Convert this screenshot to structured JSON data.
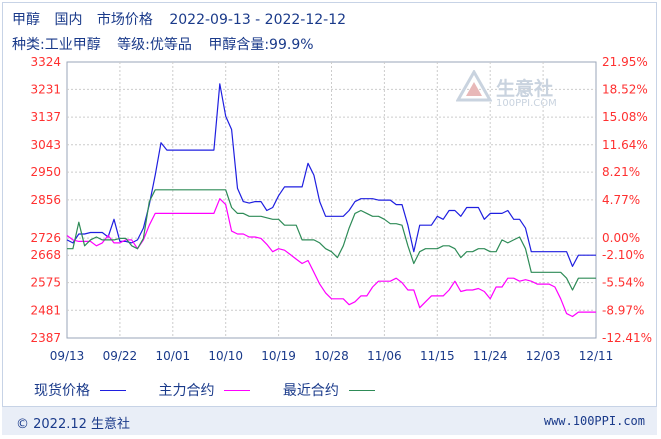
{
  "header": {
    "product": "甲醇",
    "market": "国内",
    "price_type": "市场价格",
    "date_range": "2022-09-13 - 2022-12-12",
    "category": "种类:工业甲醇",
    "grade": "等级:优等品",
    "content": "甲醇含量:99.9%"
  },
  "watermark": {
    "name": "生意社",
    "url": "100PPI.COM"
  },
  "legend": [
    {
      "label": "现货价格",
      "color": "#1f1fe0"
    },
    {
      "label": "主力合约",
      "color": "#ff00ff"
    },
    {
      "label": "最近合约",
      "color": "#2e8b57"
    }
  ],
  "footer": {
    "left": "© 2022.12 生意社",
    "right": "www.100PPI.com"
  },
  "chart_data": {
    "type": "line",
    "x_ticks": [
      "09/13",
      "09/22",
      "10/01",
      "10/10",
      "10/19",
      "10/28",
      "11/06",
      "11/15",
      "11/24",
      "12/03",
      "12/11"
    ],
    "y_ticks_left": [
      "3324",
      "3231",
      "3137",
      "3043",
      "2950",
      "2856",
      "2726",
      "2668",
      "2575",
      "2481",
      "2387"
    ],
    "y_ticks_right": [
      "21.95%",
      "18.52%",
      "15.08%",
      "11.64%",
      "8.21%",
      "4.77%",
      "0.00%",
      "-2.10%",
      "-5.54%",
      "-8.97%",
      "-12.41%"
    ],
    "ylim": [
      2387,
      3324
    ],
    "x": [
      "09/13",
      "09/14",
      "09/15",
      "09/16",
      "09/17",
      "09/18",
      "09/19",
      "09/20",
      "09/21",
      "09/22",
      "09/23",
      "09/24",
      "09/25",
      "09/26",
      "09/27",
      "09/28",
      "09/29",
      "09/30",
      "10/01",
      "10/02",
      "10/03",
      "10/04",
      "10/05",
      "10/06",
      "10/07",
      "10/08",
      "10/09",
      "10/10",
      "10/11",
      "10/12",
      "10/13",
      "10/14",
      "10/15",
      "10/16",
      "10/17",
      "10/18",
      "10/19",
      "10/20",
      "10/21",
      "10/22",
      "10/23",
      "10/24",
      "10/25",
      "10/26",
      "10/27",
      "10/28",
      "10/29",
      "10/30",
      "10/31",
      "11/01",
      "11/02",
      "11/03",
      "11/04",
      "11/05",
      "11/06",
      "11/07",
      "11/08",
      "11/09",
      "11/10",
      "11/11",
      "11/12",
      "11/13",
      "11/14",
      "11/15",
      "11/16",
      "11/17",
      "11/18",
      "11/19",
      "11/20",
      "11/21",
      "11/22",
      "11/23",
      "11/24",
      "11/25",
      "11/26",
      "11/27",
      "11/28",
      "11/29",
      "11/30",
      "12/01",
      "12/02",
      "12/03",
      "12/04",
      "12/05",
      "12/06",
      "12/07",
      "12/08",
      "12/09",
      "12/10",
      "12/11",
      "12/12"
    ],
    "series": [
      {
        "name": "现货价格",
        "color": "#1f1fe0",
        "values": [
          2720,
          2710,
          2740,
          2740,
          2745,
          2745,
          2745,
          2730,
          2790,
          2715,
          2715,
          2710,
          2720,
          2760,
          2840,
          2940,
          3050,
          3025,
          3025,
          3025,
          3025,
          3025,
          3025,
          3025,
          3025,
          3025,
          3250,
          3140,
          3095,
          2895,
          2850,
          2845,
          2850,
          2850,
          2820,
          2830,
          2870,
          2900,
          2900,
          2900,
          2900,
          2980,
          2940,
          2850,
          2800,
          2800,
          2800,
          2800,
          2820,
          2850,
          2860,
          2860,
          2860,
          2855,
          2855,
          2855,
          2840,
          2840,
          2770,
          2680,
          2770,
          2770,
          2770,
          2800,
          2790,
          2820,
          2820,
          2800,
          2830,
          2830,
          2830,
          2790,
          2810,
          2810,
          2810,
          2820,
          2790,
          2790,
          2760,
          2680,
          2680,
          2680,
          2680,
          2680,
          2680,
          2680,
          2630,
          2668,
          2668,
          2668,
          2668
        ]
      },
      {
        "name": "主力合约",
        "color": "#ff00ff",
        "values": [
          2735,
          2720,
          2715,
          2715,
          2715,
          2700,
          2710,
          2735,
          2710,
          2710,
          2720,
          2720,
          2690,
          2720,
          2770,
          2810,
          2810,
          2810,
          2810,
          2810,
          2810,
          2810,
          2810,
          2810,
          2810,
          2810,
          2860,
          2840,
          2750,
          2740,
          2740,
          2730,
          2730,
          2725,
          2705,
          2680,
          2690,
          2685,
          2670,
          2655,
          2640,
          2650,
          2610,
          2570,
          2540,
          2520,
          2520,
          2520,
          2500,
          2510,
          2530,
          2530,
          2560,
          2580,
          2580,
          2580,
          2590,
          2575,
          2550,
          2550,
          2490,
          2510,
          2530,
          2530,
          2530,
          2550,
          2580,
          2545,
          2550,
          2550,
          2555,
          2545,
          2520,
          2560,
          2560,
          2590,
          2590,
          2580,
          2585,
          2580,
          2570,
          2570,
          2570,
          2560,
          2520,
          2470,
          2460,
          2475,
          2475,
          2475,
          2475
        ]
      },
      {
        "name": "最近合约",
        "color": "#2e8b57",
        "values": [
          2690,
          2690,
          2780,
          2700,
          2720,
          2730,
          2720,
          2720,
          2720,
          2725,
          2725,
          2700,
          2690,
          2725,
          2850,
          2890,
          2890,
          2890,
          2890,
          2890,
          2890,
          2890,
          2890,
          2890,
          2890,
          2890,
          2890,
          2890,
          2830,
          2810,
          2810,
          2800,
          2800,
          2800,
          2795,
          2790,
          2790,
          2770,
          2770,
          2770,
          2720,
          2720,
          2720,
          2710,
          2690,
          2680,
          2660,
          2700,
          2760,
          2810,
          2820,
          2810,
          2800,
          2800,
          2790,
          2775,
          2775,
          2770,
          2700,
          2640,
          2680,
          2690,
          2690,
          2690,
          2700,
          2700,
          2690,
          2660,
          2680,
          2680,
          2690,
          2690,
          2680,
          2680,
          2720,
          2710,
          2720,
          2730,
          2690,
          2610,
          2610,
          2610,
          2610,
          2610,
          2610,
          2590,
          2550,
          2590,
          2590,
          2590,
          2590
        ]
      }
    ]
  }
}
